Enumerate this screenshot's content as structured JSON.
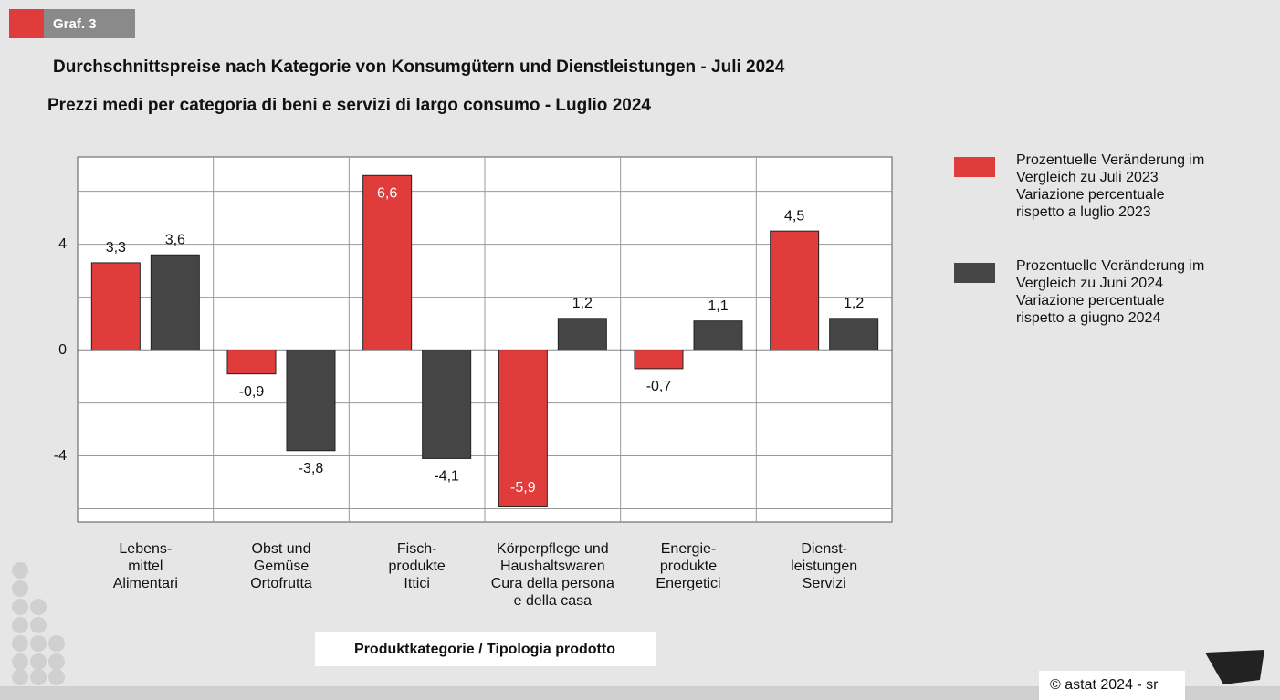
{
  "badge": "Graf. 3",
  "footer": "© astat 2024 - sr",
  "chart_data": {
    "type": "bar",
    "title": "Durchschnittspreise nach Kategorie von Konsumgütern und Dienstleistungen - Juli 2024",
    "subtitle": "Prezzi medi per categoria di beni e servizi di largo consumo - Luglio 2024",
    "x_label": "Produktkategorie / Tipologia prodotto",
    "categories": [
      "Lebens-\nmittel\nAlimentari",
      "Obst und\nGemüse\nOrtofrutta",
      "Fisch-\nprodukte\nIttici",
      "Körperpflege und\nHaushaltswaren\nCura della persona\ne della casa",
      "Energie-\nprodukte\nEnergetici",
      "Dienst-\nleistungen\nServizi"
    ],
    "series": [
      {
        "name": "Prozentuelle Veränderung im\nVergleich zu Juli 2023\nVariazione percentuale\nrispetto a luglio 2023",
        "color": "#e03c3c",
        "values": [
          3.3,
          -0.9,
          6.6,
          -5.9,
          -0.7,
          4.5
        ],
        "value_labels": [
          "3,3",
          "-0,9",
          "6,6",
          "-5,9",
          "-0,7",
          "4,5"
        ]
      },
      {
        "name": "Prozentuelle Veränderung im\nVergleich zu Juni 2024\nVariazione percentuale\nrispetto a giugno 2024",
        "color": "#454545",
        "values": [
          3.6,
          -3.8,
          -4.1,
          1.2,
          1.1,
          1.2
        ],
        "value_labels": [
          "3,6",
          "-3,8",
          "-4,1",
          "1,2",
          "1,1",
          "1,2"
        ]
      }
    ],
    "ylim": [
      -6.5,
      7.3
    ],
    "yticks": [
      -4,
      0,
      4
    ],
    "minor_yticks": [
      -6,
      -2,
      2,
      6
    ],
    "grid": true,
    "legend": "right"
  }
}
